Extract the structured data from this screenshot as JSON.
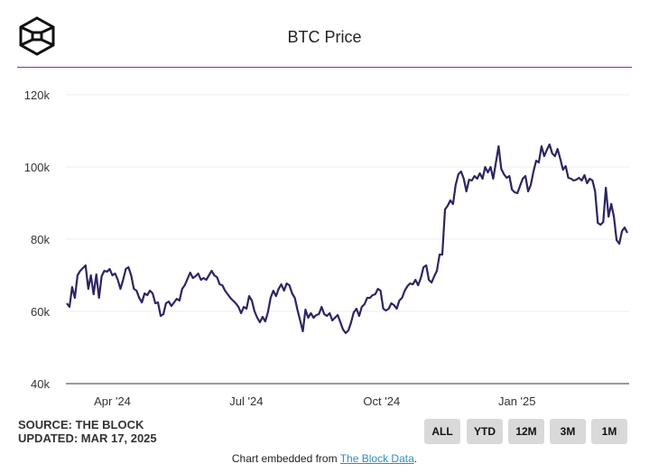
{
  "header": {
    "logo_icon": "the-block-cube-logo",
    "title": "BTC Price",
    "rule_color": "#9b1fbf"
  },
  "chart_data": {
    "type": "line",
    "title": "BTC Price",
    "xlabel": "",
    "ylabel": "",
    "ylim": [
      40000,
      120000
    ],
    "y_ticks": [
      {
        "value": 120000,
        "label": "120k"
      },
      {
        "value": 100000,
        "label": "100k"
      },
      {
        "value": 80000,
        "label": "80k"
      },
      {
        "value": 60000,
        "label": "60k"
      },
      {
        "value": 40000,
        "label": "40k"
      }
    ],
    "x_range": [
      "2024-03-01",
      "2025-03-17"
    ],
    "x_ticks": [
      {
        "date": "2024-04-01",
        "label": "Apr '24"
      },
      {
        "date": "2024-07-01",
        "label": "Jul '24"
      },
      {
        "date": "2024-10-01",
        "label": "Oct '24"
      },
      {
        "date": "2025-01-01",
        "label": "Jan '25"
      }
    ],
    "grid": true,
    "line_color": "#2b2660",
    "series": [
      {
        "name": "BTC Price",
        "unit": "USD",
        "values": [
          62250,
          61250,
          66750,
          63750,
          70000,
          71250,
          72000,
          72750,
          66250,
          70000,
          64750,
          70250,
          63750,
          69750,
          71250,
          71000,
          71750,
          70000,
          70500,
          68750,
          66250,
          68750,
          71750,
          72250,
          70000,
          66250,
          65750,
          63750,
          62500,
          65000,
          64500,
          65750,
          65000,
          62250,
          62500,
          58750,
          59250,
          62250,
          62750,
          61500,
          62500,
          63500,
          63000,
          66250,
          67250,
          69000,
          70750,
          69250,
          69750,
          70500,
          68750,
          69250,
          68750,
          70000,
          71250,
          70000,
          69500,
          67500,
          67250,
          65750,
          64750,
          63750,
          63000,
          62250,
          61250,
          59500,
          61250,
          60750,
          64250,
          63000,
          60000,
          58250,
          57000,
          58500,
          57250,
          59750,
          63750,
          65750,
          64250,
          66250,
          67500,
          65750,
          67750,
          67250,
          65000,
          63750,
          60500,
          57500,
          54500,
          60500,
          58250,
          59500,
          58250,
          59000,
          59250,
          61250,
          59250,
          58750,
          59500,
          57500,
          58250,
          59000,
          57000,
          55000,
          54000,
          54750,
          57000,
          59750,
          60750,
          58750,
          61250,
          62000,
          63750,
          63750,
          64500,
          64750,
          66250,
          65750,
          60750,
          60250,
          60750,
          62250,
          61750,
          60750,
          63000,
          63750,
          65750,
          67000,
          67750,
          67500,
          68750,
          67250,
          69250,
          72250,
          72750,
          68750,
          68000,
          69750,
          71250,
          75750,
          75750,
          88250,
          89250,
          90750,
          89750,
          95000,
          98000,
          98750,
          96750,
          93250,
          96500,
          96250,
          97500,
          96750,
          98250,
          96750,
          100000,
          98500,
          100000,
          96750,
          101250,
          105750,
          99500,
          98000,
          97000,
          97500,
          93750,
          93000,
          92750,
          94750,
          96750,
          97500,
          93250,
          95000,
          98750,
          101750,
          101250,
          105750,
          103000,
          104750,
          106250,
          103750,
          103000,
          105000,
          102250,
          99250,
          100250,
          97000,
          96750,
          96250,
          96500,
          97000,
          96250,
          97750,
          95500,
          96750,
          96250,
          93250,
          84500,
          84000,
          84750,
          94250,
          86250,
          89750,
          86250,
          79750,
          78750,
          82250,
          83250,
          81750
        ]
      }
    ]
  },
  "footer": {
    "source": "SOURCE: THE BLOCK",
    "updated": "UPDATED: MAR 17, 2025",
    "range_buttons": [
      "ALL",
      "YTD",
      "12M",
      "3M",
      "1M"
    ],
    "embed_prefix": "Chart embedded from ",
    "embed_link": "The Block Data",
    "embed_suffix": ".",
    "link_color": "#2a8fbf"
  }
}
